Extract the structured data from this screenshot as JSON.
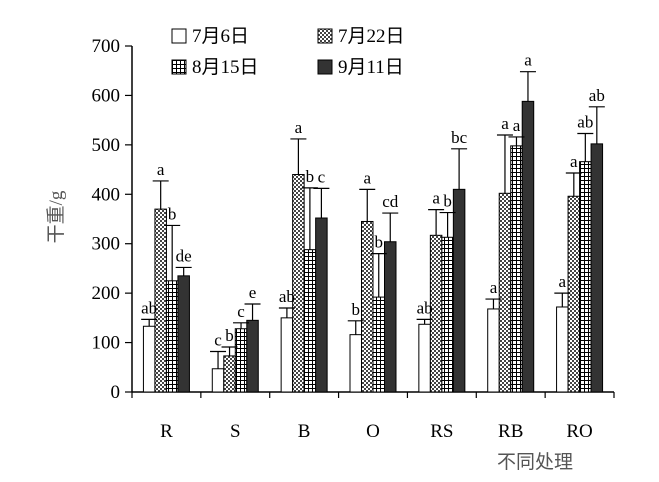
{
  "chart_data": {
    "type": "bar",
    "title": "",
    "xlabel": "不同处理",
    "ylabel": "干重/g",
    "ylim": [
      0,
      700
    ],
    "yticks": [
      0,
      100,
      200,
      300,
      400,
      500,
      600,
      700
    ],
    "grid": false,
    "legend_position": "top",
    "categories": [
      "R",
      "S",
      "B",
      "O",
      "RS",
      "RB",
      "RO"
    ],
    "series": [
      {
        "name": "7月6日",
        "pattern": "white",
        "values": [
          133,
          47,
          150,
          116,
          137,
          168,
          172
        ],
        "errors": [
          14,
          35,
          20,
          28,
          10,
          20,
          28
        ],
        "labels": [
          "ab",
          "c",
          "ab",
          "b",
          "ab",
          "a",
          "a"
        ]
      },
      {
        "name": "7月22日",
        "pattern": "dotted",
        "values": [
          370,
          73,
          440,
          345,
          317,
          402,
          396
        ],
        "errors": [
          57,
          18,
          72,
          65,
          52,
          118,
          47
        ],
        "labels": [
          "a",
          "b",
          "a",
          "a",
          "a",
          "a",
          "a"
        ]
      },
      {
        "name": "8月15日",
        "pattern": "grid",
        "values": [
          225,
          128,
          288,
          192,
          313,
          498,
          466
        ],
        "errors": [
          112,
          12,
          125,
          88,
          50,
          18,
          57
        ],
        "labels": [
          "b",
          "c",
          "b",
          "b",
          "b",
          "a",
          "ab"
        ]
      },
      {
        "name": "9月11日",
        "pattern": "dark",
        "values": [
          235,
          145,
          352,
          304,
          410,
          588,
          502
        ],
        "errors": [
          17,
          33,
          60,
          58,
          82,
          60,
          75
        ],
        "labels": [
          "de",
          "e",
          "c",
          "cd",
          "bc",
          "a",
          "ab"
        ]
      }
    ]
  }
}
